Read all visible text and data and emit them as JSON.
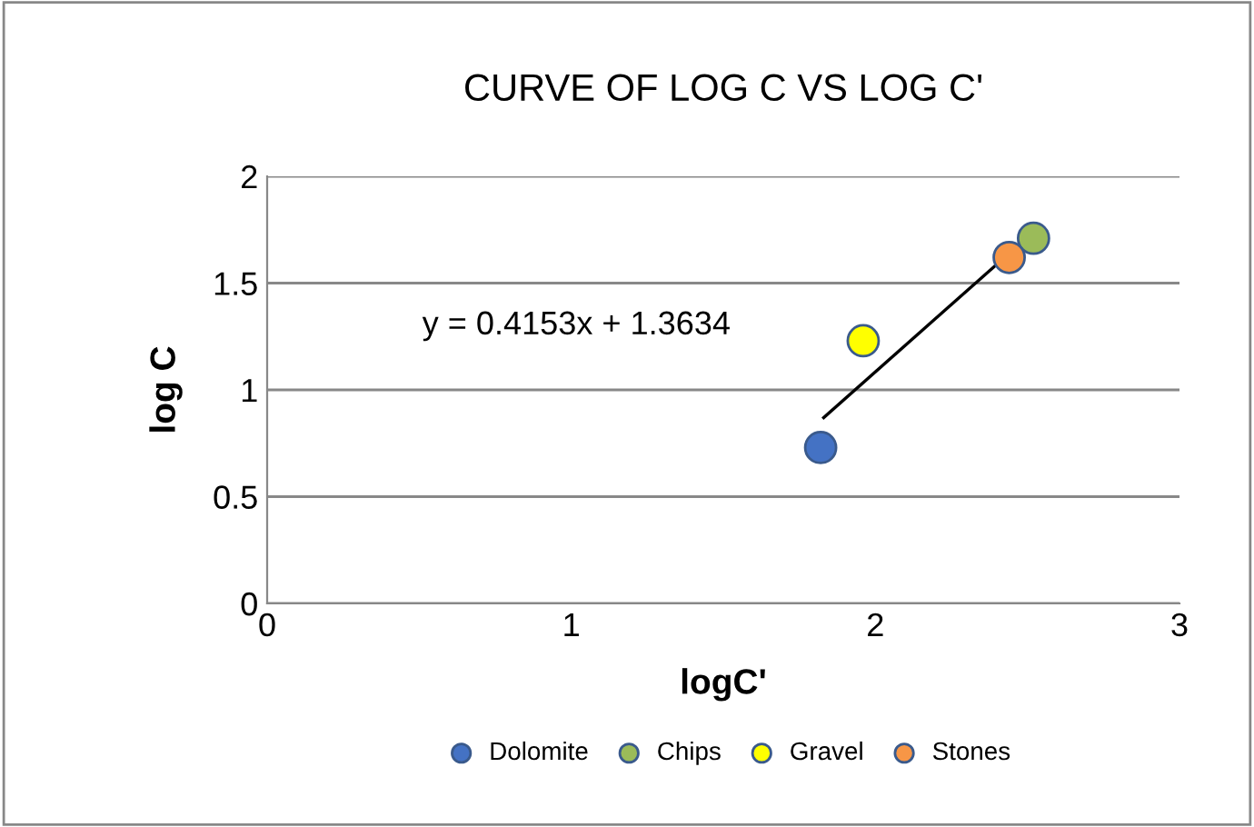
{
  "chart_data": {
    "type": "scatter",
    "title": "CURVE OF LOG C VS LOG C'",
    "xlabel": "logC'",
    "ylabel": "log C",
    "series": [
      {
        "name": "Dolomite",
        "color": "#4472c4",
        "x": [
          1.82
        ],
        "values": [
          0.73
        ]
      },
      {
        "name": "Chips",
        "color": "#9bbb59",
        "x": [
          2.52
        ],
        "values": [
          1.71
        ]
      },
      {
        "name": "Gravel",
        "color": "#ffff00",
        "x": [
          1.96
        ],
        "values": [
          1.23
        ]
      },
      {
        "name": "Stones",
        "color": "#f79646",
        "x": [
          2.44
        ],
        "values": [
          1.62
        ]
      },
      {
        "type": "line",
        "marker": "none",
        "color": "#000000",
        "x": [
          1.83,
          2.52
        ],
        "values": [
          0.87,
          1.74
        ]
      }
    ],
    "annotations": [
      "y = 0.4153x + 1.3634"
    ],
    "xlim": [
      0,
      3
    ],
    "xticks": [
      0,
      1,
      2,
      3
    ],
    "ylim": [
      0,
      2
    ],
    "yticks": [
      0,
      0.5,
      1,
      1.5,
      2
    ],
    "grid": "y",
    "legend": "bottom",
    "marker": "circle"
  }
}
